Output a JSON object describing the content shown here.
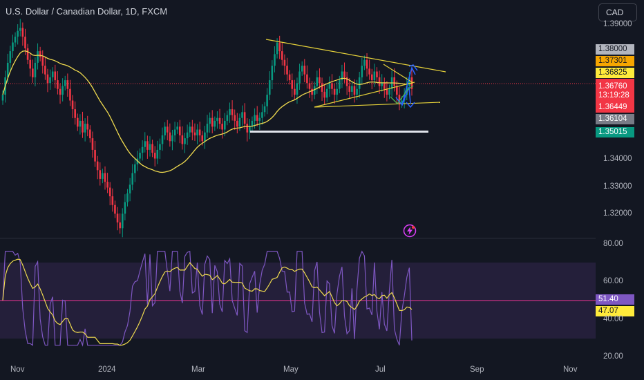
{
  "header": {
    "title": "U.S. Dollar / Canadian Dollar, 1D, FXCM",
    "currency_button": "CAD"
  },
  "price_axis": {
    "ticks": [
      "1.39000",
      "1.34000",
      "1.33000",
      "1.32000"
    ]
  },
  "price_labels": [
    {
      "text": "1.38000",
      "bg": "#b2b5be",
      "fg": "#131722"
    },
    {
      "text": "1.37301",
      "bg": "#f7a600",
      "fg": "#131722"
    },
    {
      "text": "1.36825",
      "bg": "#ffeb3b",
      "fg": "#131722"
    },
    {
      "text": "1.36449",
      "bg": "#f23645",
      "fg": "#ffffff"
    },
    {
      "text": "1.36104",
      "bg": "#787b86",
      "fg": "#ffffff"
    },
    {
      "text": "1.35015",
      "bg": "#089981",
      "fg": "#ffffff"
    }
  ],
  "last_price": {
    "price": "1.36760",
    "countdown": "13:19:28"
  },
  "rsi_axis": {
    "ticks": [
      "80.00",
      "60.00",
      "40.00",
      "20.00"
    ],
    "rsi_label": "51.40",
    "ma_label": "47.07"
  },
  "time_axis": {
    "labels": [
      "Nov",
      "2024",
      "Mar",
      "May",
      "Jul",
      "Sep",
      "Nov"
    ]
  },
  "colors": {
    "background": "#131722",
    "up_candle": "#089981",
    "down_candle": "#f23645",
    "ma_line": "#fbe64b",
    "rsi_line": "#7e57c2",
    "rsi_band": "#2a2440",
    "trendline": "#e6d23a",
    "arrow": "#2962ff"
  },
  "icons": {
    "flash": "lightning-circle-icon"
  },
  "chart_data": {
    "type": "candlestick",
    "symbol": "U.S. Dollar / Canadian Dollar",
    "interval": "1D",
    "source": "FXCM",
    "ylim": [
      1.3165,
      1.3915
    ],
    "closes": [
      1.366,
      1.372,
      1.377,
      1.381,
      1.384,
      1.386,
      1.388,
      1.389,
      1.386,
      1.382,
      1.378,
      1.375,
      1.372,
      1.377,
      1.381,
      1.379,
      1.376,
      1.373,
      1.37,
      1.372,
      1.374,
      1.371,
      1.368,
      1.366,
      1.369,
      1.371,
      1.368,
      1.364,
      1.361,
      1.358,
      1.355,
      1.357,
      1.353,
      1.356,
      1.354,
      1.351,
      1.347,
      1.343,
      1.34,
      1.337,
      1.339,
      1.336,
      1.334,
      1.331,
      1.328,
      1.325,
      1.322,
      1.32,
      1.325,
      1.329,
      1.332,
      1.335,
      1.339,
      1.342,
      1.344,
      1.346,
      1.348,
      1.35,
      1.347,
      1.349,
      1.346,
      1.344,
      1.347,
      1.349,
      1.352,
      1.355,
      1.353,
      1.35,
      1.352,
      1.354,
      1.355,
      1.352,
      1.349,
      1.351,
      1.353,
      1.355,
      1.353,
      1.352,
      1.354,
      1.352,
      1.35,
      1.353,
      1.356,
      1.358,
      1.355,
      1.357,
      1.358,
      1.356,
      1.354,
      1.357,
      1.359,
      1.361,
      1.359,
      1.357,
      1.355,
      1.358,
      1.36,
      1.356,
      1.353,
      1.355,
      1.357,
      1.359,
      1.357,
      1.358,
      1.36,
      1.362,
      1.366,
      1.371,
      1.376,
      1.38,
      1.384,
      1.381,
      1.378,
      1.376,
      1.373,
      1.371,
      1.368,
      1.366,
      1.37,
      1.374,
      1.376,
      1.373,
      1.37,
      1.368,
      1.366,
      1.369,
      1.372,
      1.37,
      1.367,
      1.365,
      1.368,
      1.37,
      1.368,
      1.366,
      1.368,
      1.371,
      1.374,
      1.372,
      1.369,
      1.367,
      1.369,
      1.366,
      1.368,
      1.372,
      1.376,
      1.378,
      1.375,
      1.373,
      1.371,
      1.374,
      1.372,
      1.369,
      1.37,
      1.368,
      1.366,
      1.368,
      1.372,
      1.369,
      1.366,
      1.363,
      1.364,
      1.366,
      1.369,
      1.372,
      1.368
    ],
    "ma": {
      "name": "MA",
      "values_note": ""
    },
    "rsi": {
      "last": 51.4,
      "ma_last": 47.07,
      "range": [
        20,
        80
      ]
    },
    "levels": [
      1.38,
      1.37301,
      1.36825,
      1.3676,
      1.36449,
      1.36104,
      1.35015
    ],
    "x_labels": [
      "Nov",
      "2024",
      "Mar",
      "May",
      "Jul",
      "Sep",
      "Nov"
    ]
  }
}
